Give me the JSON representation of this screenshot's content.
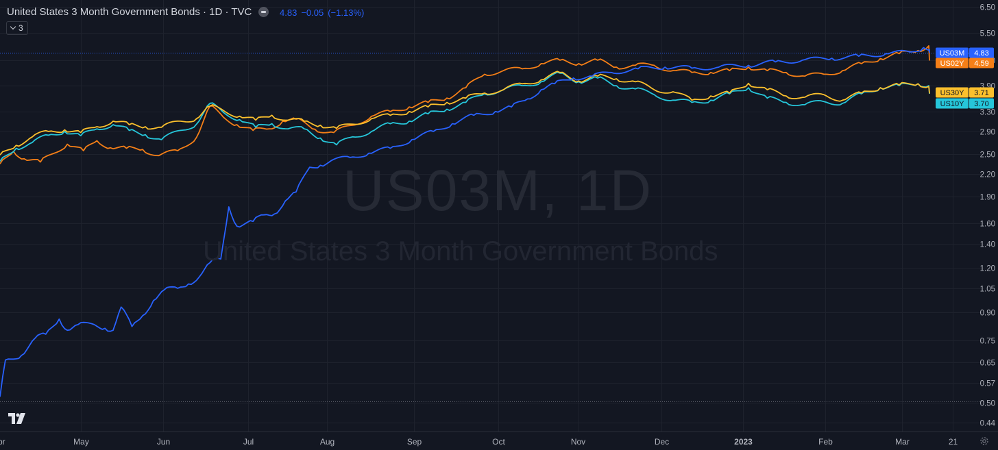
{
  "header": {
    "title": "United States 3 Month Government Bonds · 1D · TVC",
    "last": "4.83",
    "change": "−0.05",
    "change_pct": "(−1.13%)",
    "collapse_count": "3"
  },
  "watermark": {
    "symbol": "US03M, 1D",
    "name": "United States 3 Month Government Bonds"
  },
  "icons": {
    "logo": "tradingview-logo-icon",
    "settings": "gear-icon",
    "collapse": "chevron-down-icon",
    "remove": "minus-circle-icon"
  },
  "colors": {
    "background": "#131722",
    "grid": "#1e222d",
    "US03M": "#2962ff",
    "US02Y": "#f57f17",
    "US30Y": "#fbc02d",
    "US10Y": "#26c6da"
  },
  "chart_data": {
    "type": "line",
    "scale": "log",
    "y_range": [
      0.42,
      6.6
    ],
    "y_ticks": [
      "6.50",
      "5.50",
      "4.60",
      "3.90",
      "3.30",
      "2.90",
      "2.50",
      "2.20",
      "1.90",
      "1.60",
      "1.40",
      "1.20",
      "1.05",
      "0.90",
      "0.75",
      "0.65",
      "0.57",
      "0.50",
      "0.44"
    ],
    "x_labels": [
      "pr",
      "May",
      "Jun",
      "Jul",
      "Aug",
      "Sep",
      "Oct",
      "Nov",
      "Dec",
      "2023",
      "Feb",
      "Mar",
      "21"
    ],
    "grid": true,
    "legend": "right-axis labels",
    "x_range": [
      "2022-03-28",
      "2023-03-23"
    ],
    "series": [
      {
        "name": "US03M",
        "value": "4.83",
        "points": [
          [
            "2022-03-28",
            0.52
          ],
          [
            "2022-03-30",
            0.66
          ],
          [
            "2022-04-05",
            0.68
          ],
          [
            "2022-04-10",
            0.76
          ],
          [
            "2022-04-14",
            0.78
          ],
          [
            "2022-04-19",
            0.86
          ],
          [
            "2022-04-22",
            0.8
          ],
          [
            "2022-04-26",
            0.83
          ],
          [
            "2022-05-02",
            0.83
          ],
          [
            "2022-05-06",
            0.81
          ],
          [
            "2022-05-09",
            0.8
          ],
          [
            "2022-05-12",
            0.93
          ],
          [
            "2022-05-16",
            0.82
          ],
          [
            "2022-05-20",
            0.88
          ],
          [
            "2022-05-24",
            0.97
          ],
          [
            "2022-05-28",
            1.04
          ],
          [
            "2022-06-02",
            1.05
          ],
          [
            "2022-06-06",
            1.08
          ],
          [
            "2022-06-10",
            1.13
          ],
          [
            "2022-06-14",
            1.24
          ],
          [
            "2022-06-18",
            1.27
          ],
          [
            "2022-06-21",
            1.78
          ],
          [
            "2022-06-24",
            1.57
          ],
          [
            "2022-06-30",
            1.62
          ],
          [
            "2022-07-04",
            1.69
          ],
          [
            "2022-07-08",
            1.7
          ],
          [
            "2022-07-12",
            1.85
          ],
          [
            "2022-07-16",
            1.96
          ],
          [
            "2022-07-21",
            2.3
          ],
          [
            "2022-07-25",
            2.33
          ],
          [
            "2022-07-29",
            2.4
          ],
          [
            "2022-08-05",
            2.45
          ],
          [
            "2022-08-12",
            2.52
          ],
          [
            "2022-08-20",
            2.6
          ],
          [
            "2022-08-28",
            2.75
          ],
          [
            "2022-09-05",
            2.9
          ],
          [
            "2022-09-12",
            3.05
          ],
          [
            "2022-09-20",
            3.22
          ],
          [
            "2022-09-28",
            3.3
          ],
          [
            "2022-10-04",
            3.4
          ],
          [
            "2022-10-10",
            3.58
          ],
          [
            "2022-10-15",
            3.8
          ],
          [
            "2022-10-20",
            3.95
          ],
          [
            "2022-10-27",
            4.1
          ],
          [
            "2022-11-03",
            4.15
          ],
          [
            "2022-11-10",
            4.25
          ],
          [
            "2022-11-20",
            4.35
          ],
          [
            "2022-11-30",
            4.4
          ],
          [
            "2022-12-10",
            4.37
          ],
          [
            "2022-12-20",
            4.4
          ],
          [
            "2022-12-31",
            4.45
          ],
          [
            "2023-01-10",
            4.55
          ],
          [
            "2023-01-20",
            4.6
          ],
          [
            "2023-01-31",
            4.66
          ],
          [
            "2023-02-10",
            4.72
          ],
          [
            "2023-02-20",
            4.8
          ],
          [
            "2023-03-01",
            4.85
          ],
          [
            "2023-03-06",
            4.99
          ],
          [
            "2023-03-09",
            4.9
          ],
          [
            "2023-03-10",
            4.83
          ]
        ]
      },
      {
        "name": "US02Y",
        "value": "4.59",
        "points": [
          [
            "2022-03-28",
            2.35
          ],
          [
            "2022-04-02",
            2.55
          ],
          [
            "2022-04-06",
            2.43
          ],
          [
            "2022-04-12",
            2.38
          ],
          [
            "2022-04-16",
            2.5
          ],
          [
            "2022-04-22",
            2.67
          ],
          [
            "2022-04-28",
            2.56
          ],
          [
            "2022-05-03",
            2.73
          ],
          [
            "2022-05-08",
            2.61
          ],
          [
            "2022-05-14",
            2.6
          ],
          [
            "2022-05-20",
            2.58
          ],
          [
            "2022-05-26",
            2.48
          ],
          [
            "2022-06-02",
            2.56
          ],
          [
            "2022-06-09",
            2.79
          ],
          [
            "2022-06-14",
            3.42
          ],
          [
            "2022-06-19",
            3.18
          ],
          [
            "2022-06-24",
            3.03
          ],
          [
            "2022-06-30",
            2.92
          ],
          [
            "2022-07-06",
            2.95
          ],
          [
            "2022-07-11",
            3.1
          ],
          [
            "2022-07-16",
            3.14
          ],
          [
            "2022-07-23",
            2.94
          ],
          [
            "2022-07-30",
            2.88
          ],
          [
            "2022-08-06",
            3.02
          ],
          [
            "2022-08-13",
            3.2
          ],
          [
            "2022-08-20",
            3.3
          ],
          [
            "2022-08-27",
            3.4
          ],
          [
            "2022-09-03",
            3.5
          ],
          [
            "2022-09-10",
            3.6
          ],
          [
            "2022-09-17",
            3.85
          ],
          [
            "2022-09-24",
            4.2
          ],
          [
            "2022-10-01",
            4.3
          ],
          [
            "2022-10-08",
            4.35
          ],
          [
            "2022-10-15",
            4.5
          ],
          [
            "2022-10-22",
            4.6
          ],
          [
            "2022-10-29",
            4.5
          ],
          [
            "2022-11-05",
            4.6
          ],
          [
            "2022-11-12",
            4.4
          ],
          [
            "2022-11-19",
            4.45
          ],
          [
            "2022-11-26",
            4.45
          ],
          [
            "2022-12-03",
            4.3
          ],
          [
            "2022-12-10",
            4.25
          ],
          [
            "2022-12-17",
            4.25
          ],
          [
            "2022-12-24",
            4.3
          ],
          [
            "2022-12-31",
            4.4
          ],
          [
            "2023-01-07",
            4.3
          ],
          [
            "2023-01-14",
            4.25
          ],
          [
            "2023-01-21",
            4.15
          ],
          [
            "2023-01-28",
            4.2
          ],
          [
            "2023-02-04",
            4.3
          ],
          [
            "2023-02-11",
            4.5
          ],
          [
            "2023-02-18",
            4.65
          ],
          [
            "2023-02-25",
            4.8
          ],
          [
            "2023-03-04",
            4.9
          ],
          [
            "2023-03-08",
            5.05
          ],
          [
            "2023-03-10",
            4.59
          ]
        ]
      },
      {
        "name": "US30Y",
        "value": "3.71",
        "points": [
          [
            "2022-03-28",
            2.49
          ],
          [
            "2022-04-03",
            2.65
          ],
          [
            "2022-04-09",
            2.8
          ],
          [
            "2022-04-15",
            2.9
          ],
          [
            "2022-04-21",
            2.93
          ],
          [
            "2022-04-27",
            2.88
          ],
          [
            "2022-05-03",
            2.99
          ],
          [
            "2022-05-09",
            3.1
          ],
          [
            "2022-05-15",
            3.03
          ],
          [
            "2022-05-21",
            2.99
          ],
          [
            "2022-05-27",
            2.98
          ],
          [
            "2022-06-03",
            3.1
          ],
          [
            "2022-06-09",
            3.15
          ],
          [
            "2022-06-14",
            3.42
          ],
          [
            "2022-06-19",
            3.32
          ],
          [
            "2022-06-25",
            3.2
          ],
          [
            "2022-07-01",
            3.12
          ],
          [
            "2022-07-07",
            3.22
          ],
          [
            "2022-07-13",
            3.12
          ],
          [
            "2022-07-19",
            3.1
          ],
          [
            "2022-07-25",
            3.02
          ],
          [
            "2022-07-31",
            2.96
          ],
          [
            "2022-08-06",
            3.04
          ],
          [
            "2022-08-13",
            3.15
          ],
          [
            "2022-08-20",
            3.22
          ],
          [
            "2022-08-27",
            3.3
          ],
          [
            "2022-09-03",
            3.4
          ],
          [
            "2022-09-10",
            3.5
          ],
          [
            "2022-09-17",
            3.6
          ],
          [
            "2022-09-24",
            3.72
          ],
          [
            "2022-10-01",
            3.8
          ],
          [
            "2022-10-08",
            3.95
          ],
          [
            "2022-10-15",
            4.05
          ],
          [
            "2022-10-22",
            4.25
          ],
          [
            "2022-10-29",
            4.02
          ],
          [
            "2022-11-05",
            4.15
          ],
          [
            "2022-11-12",
            4.08
          ],
          [
            "2022-11-19",
            4.0
          ],
          [
            "2022-11-26",
            3.8
          ],
          [
            "2022-12-03",
            3.75
          ],
          [
            "2022-12-10",
            3.55
          ],
          [
            "2022-12-17",
            3.65
          ],
          [
            "2022-12-24",
            3.72
          ],
          [
            "2022-12-31",
            3.96
          ],
          [
            "2023-01-07",
            3.8
          ],
          [
            "2023-01-14",
            3.65
          ],
          [
            "2023-01-21",
            3.62
          ],
          [
            "2023-01-28",
            3.68
          ],
          [
            "2023-02-04",
            3.55
          ],
          [
            "2023-02-11",
            3.72
          ],
          [
            "2023-02-18",
            3.85
          ],
          [
            "2023-02-25",
            3.92
          ],
          [
            "2023-03-04",
            3.95
          ],
          [
            "2023-03-08",
            3.88
          ],
          [
            "2023-03-10",
            3.71
          ]
        ]
      },
      {
        "name": "US10Y",
        "value": "3.70",
        "points": [
          [
            "2022-03-28",
            2.39
          ],
          [
            "2022-04-03",
            2.6
          ],
          [
            "2022-04-09",
            2.7
          ],
          [
            "2022-04-15",
            2.83
          ],
          [
            "2022-04-21",
            2.9
          ],
          [
            "2022-04-27",
            2.82
          ],
          [
            "2022-05-03",
            2.95
          ],
          [
            "2022-05-09",
            3.03
          ],
          [
            "2022-05-15",
            2.92
          ],
          [
            "2022-05-21",
            2.84
          ],
          [
            "2022-05-27",
            2.75
          ],
          [
            "2022-06-03",
            2.92
          ],
          [
            "2022-06-09",
            3.04
          ],
          [
            "2022-06-14",
            3.48
          ],
          [
            "2022-06-19",
            3.28
          ],
          [
            "2022-06-25",
            3.13
          ],
          [
            "2022-07-01",
            2.98
          ],
          [
            "2022-07-07",
            3.05
          ],
          [
            "2022-07-13",
            2.95
          ],
          [
            "2022-07-19",
            2.95
          ],
          [
            "2022-07-25",
            2.78
          ],
          [
            "2022-07-31",
            2.66
          ],
          [
            "2022-08-06",
            2.8
          ],
          [
            "2022-08-13",
            2.9
          ],
          [
            "2022-08-20",
            3.05
          ],
          [
            "2022-08-27",
            3.1
          ],
          [
            "2022-09-03",
            3.25
          ],
          [
            "2022-09-10",
            3.35
          ],
          [
            "2022-09-17",
            3.5
          ],
          [
            "2022-09-24",
            3.7
          ],
          [
            "2022-10-01",
            3.8
          ],
          [
            "2022-10-08",
            3.9
          ],
          [
            "2022-10-15",
            4.0
          ],
          [
            "2022-10-22",
            4.23
          ],
          [
            "2022-10-29",
            4.0
          ],
          [
            "2022-11-05",
            4.1
          ],
          [
            "2022-11-12",
            3.9
          ],
          [
            "2022-11-19",
            3.82
          ],
          [
            "2022-11-26",
            3.68
          ],
          [
            "2022-12-03",
            3.55
          ],
          [
            "2022-12-10",
            3.5
          ],
          [
            "2022-12-17",
            3.55
          ],
          [
            "2022-12-24",
            3.7
          ],
          [
            "2022-12-31",
            3.85
          ],
          [
            "2023-01-07",
            3.6
          ],
          [
            "2023-01-14",
            3.5
          ],
          [
            "2023-01-21",
            3.45
          ],
          [
            "2023-01-28",
            3.52
          ],
          [
            "2023-02-04",
            3.48
          ],
          [
            "2023-02-11",
            3.7
          ],
          [
            "2023-02-18",
            3.85
          ],
          [
            "2023-02-25",
            3.9
          ],
          [
            "2023-03-04",
            3.95
          ],
          [
            "2023-03-08",
            3.9
          ],
          [
            "2023-03-10",
            3.7
          ]
        ]
      }
    ]
  }
}
